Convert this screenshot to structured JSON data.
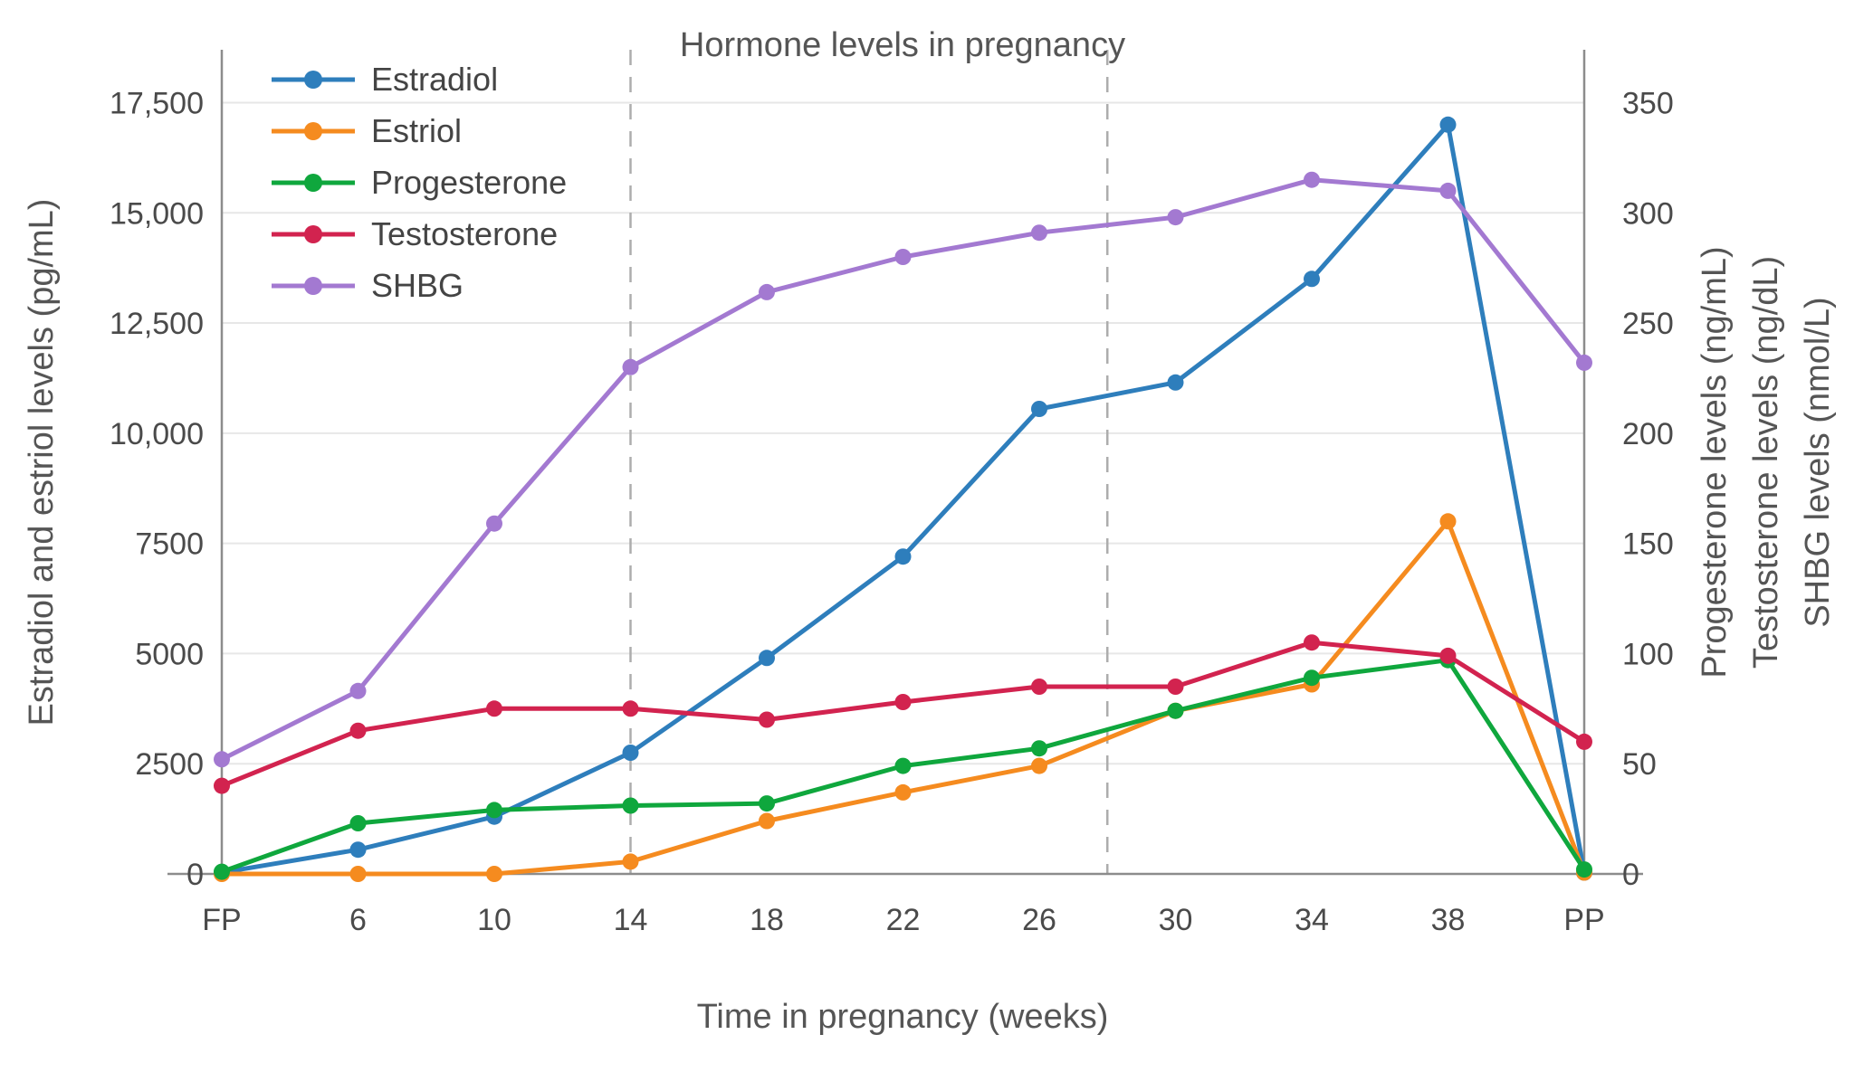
{
  "chart_data": {
    "type": "line",
    "title": "Hormone levels in pregnancy",
    "xlabel": "Time in pregnancy (weeks)",
    "ylabel_left": "Estradiol and estriol levels (pg/mL)",
    "ylabel_right_lines": [
      "Progesterone levels (ng/mL)",
      "Testosterone levels (ng/dL)",
      "SHBG levels (nmol/L)"
    ],
    "categories": [
      "FP",
      "6",
      "10",
      "14",
      "18",
      "22",
      "26",
      "30",
      "34",
      "38",
      "PP"
    ],
    "left_axis": {
      "ticks": [
        0,
        2500,
        5000,
        7500,
        10000,
        12500,
        15000,
        17500
      ],
      "tick_labels": [
        "0",
        "2500",
        "5000",
        "7500",
        "10,000",
        "12,500",
        "15,000",
        "17,500"
      ],
      "max": 18700
    },
    "right_axis": {
      "ticks": [
        0,
        50,
        100,
        150,
        200,
        250,
        300,
        350
      ],
      "tick_labels": [
        "0",
        "50",
        "100",
        "150",
        "200",
        "250",
        "300",
        "350"
      ],
      "max": 374
    },
    "dashed_vlines_x": [
      3,
      6.5
    ],
    "solid_vlines_x": [
      0,
      10
    ],
    "grid": true,
    "legend_position": "top-left-inside",
    "series": [
      {
        "name": "Estradiol",
        "axis": "left",
        "unit": "pg/mL",
        "color": "#2e7ebc",
        "values": [
          30,
          550,
          1300,
          2750,
          4900,
          7200,
          10550,
          11150,
          13500,
          17000,
          30
        ]
      },
      {
        "name": "Estriol",
        "axis": "left",
        "unit": "pg/mL",
        "color": "#f58b1f",
        "values": [
          0,
          0,
          0,
          280,
          1200,
          1850,
          2450,
          3700,
          4300,
          8000,
          30
        ]
      },
      {
        "name": "Progesterone",
        "axis": "right",
        "unit": "ng/mL",
        "color": "#0fa73d",
        "values": [
          1,
          23,
          29,
          31,
          32,
          49,
          57,
          74,
          89,
          97,
          2
        ]
      },
      {
        "name": "Testosterone",
        "axis": "right",
        "unit": "ng/dL",
        "color": "#d2234f",
        "values": [
          40,
          65,
          75,
          75,
          70,
          78,
          85,
          85,
          105,
          99,
          60
        ]
      },
      {
        "name": "SHBG",
        "axis": "right",
        "unit": "nmol/L",
        "color": "#a379d1",
        "values": [
          52,
          83,
          159,
          230,
          264,
          280,
          291,
          298,
          315,
          310,
          232
        ]
      }
    ],
    "colors": {
      "grid": "#e7e7e7",
      "axis_line": "#8c8c8c",
      "dashed_line": "#adadad",
      "tick_text": "#4a4a4a",
      "title_text": "#555555"
    }
  }
}
